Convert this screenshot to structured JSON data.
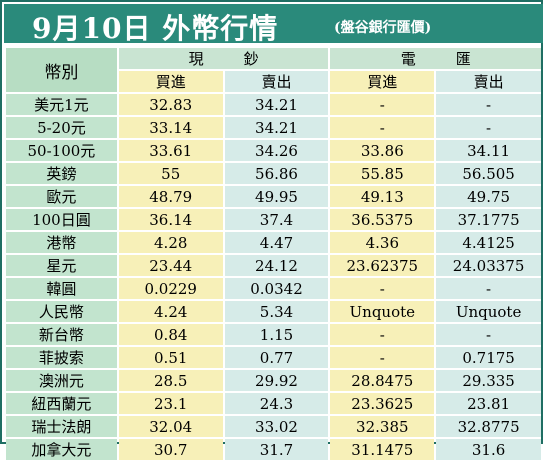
{
  "title": "9月10日 外幣行情",
  "subtitle": "(盤谷銀行匯價)",
  "headers": {
    "currency": "幣別",
    "cash": "現鈔",
    "transfer": "電匯",
    "buy": "買進",
    "sell": "賣出"
  },
  "rows": [
    {
      "currency": "美元1元",
      "cash_buy": "32.83",
      "cash_sell": "34.21",
      "tt_buy": "-",
      "tt_sell": "-"
    },
    {
      "currency": "5-20元",
      "cash_buy": "33.14",
      "cash_sell": "34.21",
      "tt_buy": "-",
      "tt_sell": "-"
    },
    {
      "currency": "50-100元",
      "cash_buy": "33.61",
      "cash_sell": "34.26",
      "tt_buy": "33.86",
      "tt_sell": "34.11"
    },
    {
      "currency": "英鎊",
      "cash_buy": "55",
      "cash_sell": "56.86",
      "tt_buy": "55.85",
      "tt_sell": "56.505"
    },
    {
      "currency": "歐元",
      "cash_buy": "48.79",
      "cash_sell": "49.95",
      "tt_buy": "49.13",
      "tt_sell": "49.75"
    },
    {
      "currency": "100日圓",
      "cash_buy": "36.14",
      "cash_sell": "37.4",
      "tt_buy": "36.5375",
      "tt_sell": "37.1775"
    },
    {
      "currency": "港幣",
      "cash_buy": "4.28",
      "cash_sell": "4.47",
      "tt_buy": "4.36",
      "tt_sell": "4.4125"
    },
    {
      "currency": "星元",
      "cash_buy": "23.44",
      "cash_sell": "24.12",
      "tt_buy": "23.62375",
      "tt_sell": "24.03375"
    },
    {
      "currency": "韓圓",
      "cash_buy": "0.0229",
      "cash_sell": "0.0342",
      "tt_buy": "-",
      "tt_sell": "-"
    },
    {
      "currency": "人民幣",
      "cash_buy": "4.24",
      "cash_sell": "5.34",
      "tt_buy": "Unquote",
      "tt_sell": "Unquote"
    },
    {
      "currency": "新台幣",
      "cash_buy": "0.84",
      "cash_sell": "1.15",
      "tt_buy": "-",
      "tt_sell": "-"
    },
    {
      "currency": "菲披索",
      "cash_buy": "0.51",
      "cash_sell": "0.77",
      "tt_buy": "-",
      "tt_sell": "0.7175"
    },
    {
      "currency": "澳洲元",
      "cash_buy": "28.5",
      "cash_sell": "29.92",
      "tt_buy": "28.8475",
      "tt_sell": "29.335"
    },
    {
      "currency": "紐西蘭元",
      "cash_buy": "23.1",
      "cash_sell": "24.3",
      "tt_buy": "23.3625",
      "tt_sell": "23.81"
    },
    {
      "currency": "瑞士法朗",
      "cash_buy": "32.04",
      "cash_sell": "33.02",
      "tt_buy": "32.385",
      "tt_sell": "32.8775"
    },
    {
      "currency": "加拿大元",
      "cash_buy": "30.7",
      "cash_sell": "31.7",
      "tt_buy": "31.1475",
      "tt_sell": "31.6"
    }
  ],
  "colors": {
    "title_bar": "#2a8a7b",
    "label_column": "#c2e4ce",
    "buy_column": "#f7f0b8",
    "sell_column": "#d6ebe8"
  }
}
